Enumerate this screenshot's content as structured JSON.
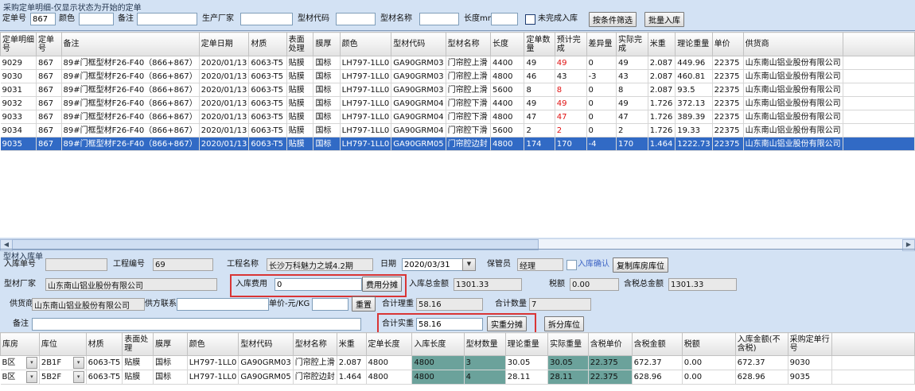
{
  "colors": {
    "selection_blue": "#316ac5",
    "highlight_teal": "#6ba29b",
    "accent_red": "#d93535"
  },
  "top": {
    "title": "采购定单明细-仅显示状态为开始的定单",
    "filter": {
      "order_no_label": "定单号",
      "order_no_value": "867",
      "color_label": "颜色",
      "color_value": "",
      "remark_label": "备注",
      "remark_value": "",
      "manufacturer_label": "生产厂家",
      "manufacturer_value": "",
      "profile_code_label": "型材代码",
      "profile_code_value": "",
      "profile_name_label": "型材名称",
      "profile_name_value": "",
      "length_label": "长度mm",
      "length_value": "",
      "unfinished_label": "未完成入库",
      "filter_button": "按条件筛选",
      "batch_inbound_button": "批量入库"
    },
    "grid": {
      "columns": [
        "定单明细号",
        "定单号",
        "备注",
        "定单日期",
        "材质",
        "表面处理",
        "膜厚",
        "颜色",
        "型材代码",
        "型材名称",
        "长度",
        "定单数量",
        "预计完成",
        "差异量",
        "实际完成",
        "米重",
        "理论重量",
        "单价",
        "供货商",
        ""
      ],
      "selected_row": 6,
      "red_column": 12,
      "red_rows": [
        0,
        2,
        3,
        4,
        5
      ],
      "rows": [
        [
          "9029",
          "867",
          "89#门框型材F26-F40（866+867）",
          "2020/01/13",
          "6063-T5",
          "贴膜",
          "国标",
          "LH797-1LL0",
          "GA90GRM03",
          "门帘腔上滑",
          "4400",
          "49",
          "49",
          "0",
          "49",
          "2.087",
          "449.96",
          "22375",
          "山东南山铝业股份有限公司"
        ],
        [
          "9030",
          "867",
          "89#门框型材F26-F40（866+867）",
          "2020/01/13",
          "6063-T5",
          "贴膜",
          "国标",
          "LH797-1LL0",
          "GA90GRM03",
          "门帘腔上滑",
          "4800",
          "46",
          "43",
          "-3",
          "43",
          "2.087",
          "460.81",
          "22375",
          "山东南山铝业股份有限公司"
        ],
        [
          "9031",
          "867",
          "89#门框型材F26-F40（866+867）",
          "2020/01/13",
          "6063-T5",
          "贴膜",
          "国标",
          "LH797-1LL0",
          "GA90GRM03",
          "门帘腔上滑",
          "5600",
          "8",
          "8",
          "0",
          "8",
          "2.087",
          "93.5",
          "22375",
          "山东南山铝业股份有限公司"
        ],
        [
          "9032",
          "867",
          "89#门框型材F26-F40（866+867）",
          "2020/01/13",
          "6063-T5",
          "贴膜",
          "国标",
          "LH797-1LL0",
          "GA90GRM04",
          "门帘腔下滑",
          "4400",
          "49",
          "49",
          "0",
          "49",
          "1.726",
          "372.13",
          "22375",
          "山东南山铝业股份有限公司"
        ],
        [
          "9033",
          "867",
          "89#门框型材F26-F40（866+867）",
          "2020/01/13",
          "6063-T5",
          "贴膜",
          "国标",
          "LH797-1LL0",
          "GA90GRM04",
          "门帘腔下滑",
          "4800",
          "47",
          "47",
          "0",
          "47",
          "1.726",
          "389.39",
          "22375",
          "山东南山铝业股份有限公司"
        ],
        [
          "9034",
          "867",
          "89#门框型材F26-F40（866+867）",
          "2020/01/13",
          "6063-T5",
          "贴膜",
          "国标",
          "LH797-1LL0",
          "GA90GRM04",
          "门帘腔下滑",
          "5600",
          "2",
          "2",
          "0",
          "2",
          "1.726",
          "19.33",
          "22375",
          "山东南山铝业股份有限公司"
        ],
        [
          "9035",
          "867",
          "89#门框型材F26-F40（866+867）",
          "2020/01/13",
          "6063-T5",
          "贴膜",
          "国标",
          "LH797-1LL0",
          "GA90GRM05",
          "门帘腔边封",
          "4800",
          "174",
          "170",
          "-4",
          "170",
          "1.464",
          "1222.73",
          "22375",
          "山东南山铝业股份有限公司"
        ]
      ]
    }
  },
  "bottom": {
    "title": "型材入库单",
    "fields": {
      "inbound_no_label": "入库单号",
      "inbound_no_value": "",
      "project_no_label": "工程编号",
      "project_no_value": "69",
      "project_name_label": "工程名称",
      "project_name_value": "长沙万科魅力之城4.2期",
      "date_label": "日期",
      "date_value": "2020/03/31",
      "keeper_label": "保管员",
      "keeper_value": "经理",
      "confirm_label": "入库确认",
      "copy_location_button": "复制库房库位",
      "factory_label": "型材厂家",
      "factory_value": "山东南山铝业股份有限公司",
      "fee_label": "入库费用",
      "fee_value": "0",
      "fee_share_button": "费用分摊",
      "total_amount_label": "入库总金额",
      "total_amount_value": "1301.33",
      "tax_label": "税额",
      "tax_value": "0.00",
      "total_with_tax_label": "含税总金额",
      "total_with_tax_value": "1301.33",
      "supplier_label": "供货商",
      "supplier_value": "山东南山铝业股份有限公司",
      "contact_label": "供方联系人",
      "contact_value": "",
      "unit_price_label": "单价-元/KG",
      "unit_price_value": "",
      "reset_button": "重置",
      "total_theory_label": "合计理重",
      "total_theory_value": "58.16",
      "total_qty_label": "合计数量",
      "total_qty_value": "7",
      "remark_label": "备注",
      "remark_value": "",
      "total_actual_label": "合计实重",
      "total_actual_value": "58.16",
      "actual_share_button": "实重分摊",
      "split_location_button": "拆分库位"
    },
    "grid": {
      "columns": [
        "库房",
        "库位",
        "材质",
        "表面处理",
        "膜厚",
        "颜色",
        "型材代码",
        "型材名称",
        "米重",
        "定单长度",
        "入库长度",
        "型材数量",
        "理论重量",
        "实际重量",
        "含税单价",
        "含税金额",
        "税额",
        "入库金额(不含税)",
        "采购定单行号",
        ""
      ],
      "teal_columns": [
        10,
        11,
        13,
        14
      ],
      "combo_columns": [
        0,
        1
      ],
      "rows": [
        [
          "B区",
          "2B1F",
          "6063-T5",
          "贴膜",
          "国标",
          "LH797-1LL0",
          "GA90GRM03",
          "门帘腔上滑",
          "2.087",
          "4800",
          "4800",
          "3",
          "30.05",
          "30.05",
          "22.375",
          "672.37",
          "0.00",
          "672.37",
          "9030"
        ],
        [
          "B区",
          "5B2F",
          "6063-T5",
          "贴膜",
          "国标",
          "LH797-1LL0",
          "GA90GRM05",
          "门帘腔边封",
          "1.464",
          "4800",
          "4800",
          "4",
          "28.11",
          "28.11",
          "22.375",
          "628.96",
          "0.00",
          "628.96",
          "9035"
        ]
      ]
    }
  }
}
